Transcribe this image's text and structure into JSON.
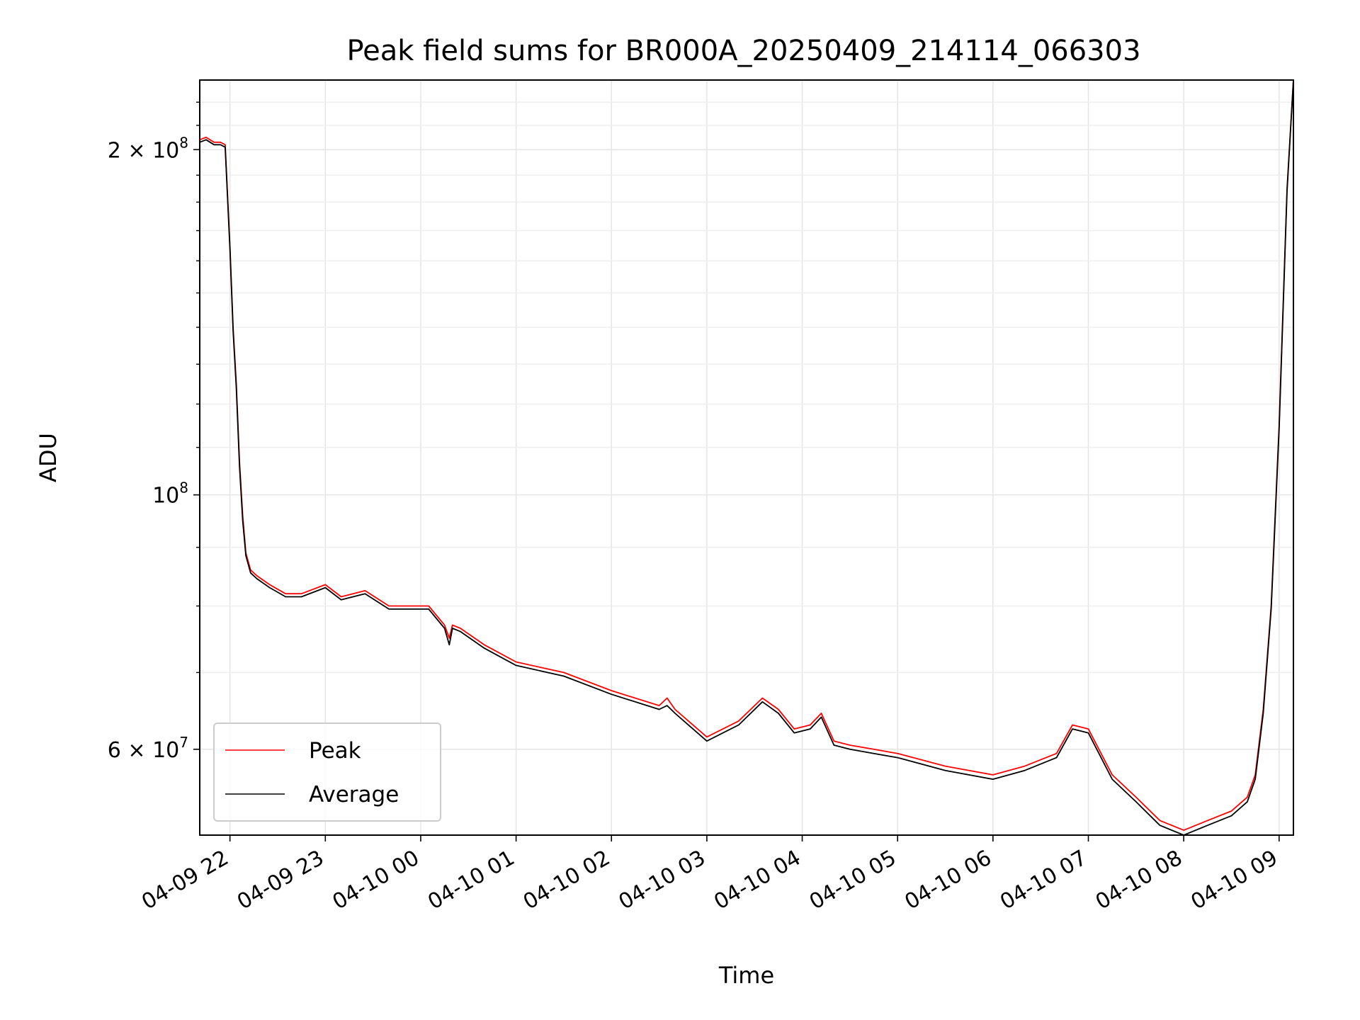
{
  "chart_data": {
    "type": "line",
    "title": "Peak field sums for BR000A_20250409_214114_066303",
    "xlabel": "Time",
    "ylabel": "ADU",
    "y_scale": "log",
    "ylim": [
      50500000,
      230000000
    ],
    "xlim": [
      "2025-04-09 21:41",
      "2025-04-10 09:09"
    ],
    "grid": true,
    "legend_position": "lower-left",
    "x_ticks": [
      "04-09 22",
      "04-09 23",
      "04-10 00",
      "04-10 01",
      "04-10 02",
      "04-10 03",
      "04-10 04",
      "04-10 05",
      "04-10 06",
      "04-10 07",
      "04-10 08",
      "04-10 09"
    ],
    "y_ticks": [
      {
        "value": 200000000,
        "mantissa": "2",
        "exponent": "8"
      },
      {
        "value": 100000000,
        "mantissa": "",
        "exponent": "8"
      },
      {
        "value": 60000000,
        "mantissa": "6",
        "exponent": "7"
      }
    ],
    "series": [
      {
        "name": "Peak",
        "color": "#ff0000",
        "x": [
          "2025-04-09 21:41",
          "2025-04-09 21:45",
          "2025-04-09 21:50",
          "2025-04-09 21:54",
          "2025-04-09 21:57",
          "2025-04-09 22:00",
          "2025-04-09 22:02",
          "2025-04-09 22:04",
          "2025-04-09 22:06",
          "2025-04-09 22:08",
          "2025-04-09 22:10",
          "2025-04-09 22:13",
          "2025-04-09 22:17",
          "2025-04-09 22:25",
          "2025-04-09 22:35",
          "2025-04-09 22:45",
          "2025-04-09 23:00",
          "2025-04-09 23:10",
          "2025-04-09 23:25",
          "2025-04-09 23:40",
          "2025-04-09 23:55",
          "2025-04-10 00:05",
          "2025-04-10 00:15",
          "2025-04-10 00:18",
          "2025-04-10 00:20",
          "2025-04-10 00:25",
          "2025-04-10 00:40",
          "2025-04-10 01:00",
          "2025-04-10 01:30",
          "2025-04-10 02:00",
          "2025-04-10 02:30",
          "2025-04-10 02:35",
          "2025-04-10 02:40",
          "2025-04-10 03:00",
          "2025-04-10 03:20",
          "2025-04-10 03:35",
          "2025-04-10 03:45",
          "2025-04-10 03:55",
          "2025-04-10 04:05",
          "2025-04-10 04:12",
          "2025-04-10 04:20",
          "2025-04-10 04:30",
          "2025-04-10 04:45",
          "2025-04-10 05:00",
          "2025-04-10 05:30",
          "2025-04-10 06:00",
          "2025-04-10 06:20",
          "2025-04-10 06:40",
          "2025-04-10 06:50",
          "2025-04-10 07:00",
          "2025-04-10 07:15",
          "2025-04-10 07:30",
          "2025-04-10 07:45",
          "2025-04-10 08:00",
          "2025-04-10 08:15",
          "2025-04-10 08:30",
          "2025-04-10 08:40",
          "2025-04-10 08:45",
          "2025-04-10 08:50",
          "2025-04-10 08:55",
          "2025-04-10 09:00",
          "2025-04-10 09:05",
          "2025-04-10 09:09"
        ],
        "values": [
          204000000,
          205000000,
          203000000,
          203000000,
          202000000,
          165000000,
          140000000,
          125000000,
          107000000,
          96000000,
          89000000,
          86000000,
          85000000,
          83500000,
          82000000,
          82000000,
          83500000,
          81500000,
          82500000,
          80000000,
          80000000,
          80000000,
          77000000,
          75000000,
          77000000,
          76500000,
          74000000,
          71500000,
          70000000,
          67500000,
          65500000,
          66500000,
          65000000,
          61500000,
          63500000,
          66500000,
          65000000,
          62500000,
          63000000,
          64500000,
          61000000,
          60500000,
          60000000,
          59500000,
          58000000,
          57000000,
          58000000,
          59500000,
          63000000,
          62500000,
          57000000,
          54500000,
          52000000,
          51000000,
          52000000,
          53000000,
          54500000,
          57000000,
          65000000,
          80000000,
          115000000,
          185000000,
          230000000
        ]
      },
      {
        "name": "Average",
        "color": "#000000",
        "x": [
          "2025-04-09 21:41",
          "2025-04-09 21:45",
          "2025-04-09 21:50",
          "2025-04-09 21:54",
          "2025-04-09 21:57",
          "2025-04-09 22:00",
          "2025-04-09 22:02",
          "2025-04-09 22:04",
          "2025-04-09 22:06",
          "2025-04-09 22:08",
          "2025-04-09 22:10",
          "2025-04-09 22:13",
          "2025-04-09 22:17",
          "2025-04-09 22:25",
          "2025-04-09 22:35",
          "2025-04-09 22:45",
          "2025-04-09 23:00",
          "2025-04-09 23:10",
          "2025-04-09 23:25",
          "2025-04-09 23:40",
          "2025-04-09 23:55",
          "2025-04-10 00:05",
          "2025-04-10 00:15",
          "2025-04-10 00:18",
          "2025-04-10 00:20",
          "2025-04-10 00:25",
          "2025-04-10 00:40",
          "2025-04-10 01:00",
          "2025-04-10 01:30",
          "2025-04-10 02:00",
          "2025-04-10 02:30",
          "2025-04-10 02:35",
          "2025-04-10 02:40",
          "2025-04-10 03:00",
          "2025-04-10 03:20",
          "2025-04-10 03:35",
          "2025-04-10 03:45",
          "2025-04-10 03:55",
          "2025-04-10 04:05",
          "2025-04-10 04:12",
          "2025-04-10 04:20",
          "2025-04-10 04:30",
          "2025-04-10 04:45",
          "2025-04-10 05:00",
          "2025-04-10 05:30",
          "2025-04-10 06:00",
          "2025-04-10 06:20",
          "2025-04-10 06:40",
          "2025-04-10 06:50",
          "2025-04-10 07:00",
          "2025-04-10 07:15",
          "2025-04-10 07:30",
          "2025-04-10 07:45",
          "2025-04-10 08:00",
          "2025-04-10 08:15",
          "2025-04-10 08:30",
          "2025-04-10 08:40",
          "2025-04-10 08:45",
          "2025-04-10 08:50",
          "2025-04-10 08:55",
          "2025-04-10 09:00",
          "2025-04-10 09:05",
          "2025-04-10 09:09"
        ],
        "values": [
          203000000,
          204000000,
          202000000,
          202000000,
          201000000,
          164000000,
          139000000,
          124000000,
          106000000,
          95000000,
          88500000,
          85500000,
          84500000,
          83000000,
          81500000,
          81500000,
          83000000,
          81000000,
          82000000,
          79500000,
          79500000,
          79500000,
          76500000,
          74000000,
          76500000,
          76000000,
          73500000,
          71000000,
          69500000,
          67000000,
          65000000,
          65500000,
          64500000,
          61000000,
          63000000,
          66000000,
          64500000,
          62000000,
          62500000,
          64000000,
          60500000,
          60000000,
          59500000,
          59000000,
          57500000,
          56500000,
          57500000,
          59000000,
          62500000,
          62000000,
          56500000,
          54000000,
          51500000,
          50500000,
          51500000,
          52500000,
          54000000,
          56500000,
          64500000,
          79500000,
          114000000,
          184000000,
          230000000
        ]
      }
    ]
  }
}
